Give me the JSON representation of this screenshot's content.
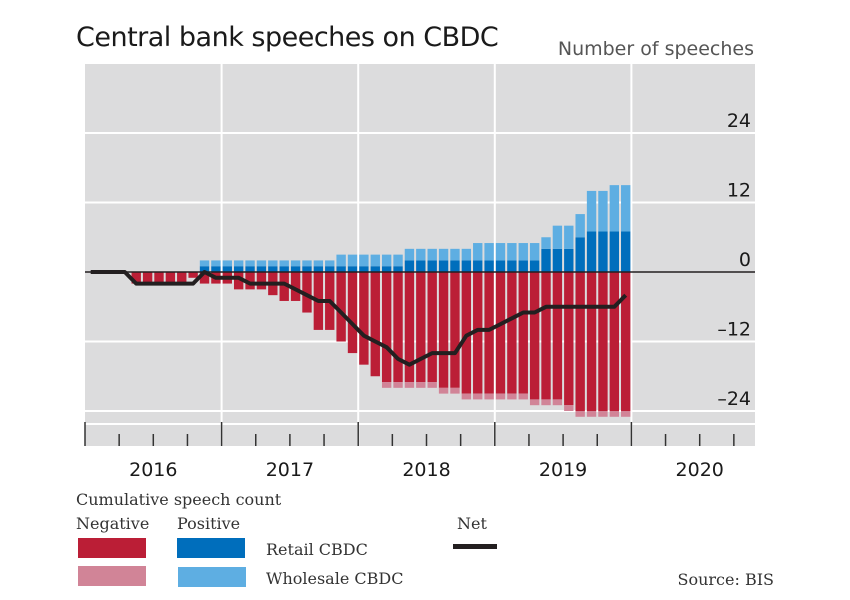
{
  "colors": {
    "plot_bg": "#dcdcdd",
    "gridline": "#ffffff",
    "negative_retail": "#bb1e36",
    "negative_wholesale": "#d18497",
    "positive_retail": "#006ebc",
    "positive_wholesale": "#5eaee2",
    "net": "#231f20",
    "zero_line": "#231f20"
  },
  "chart_data": {
    "type": "bar",
    "title": "Central bank speeches on CBDC",
    "ylabel": "Number of speeches",
    "xlabel": "",
    "ylim": [
      -30,
      36
    ],
    "yticks": [
      24,
      12,
      0,
      -12,
      -24
    ],
    "ytick_labels": [
      "24",
      "12",
      "0",
      "–12",
      "–24"
    ],
    "xtick_labels": [
      "2016",
      "2017",
      "2018",
      "2019",
      "2020"
    ],
    "x_start": "2016-01",
    "frequency": "monthly",
    "grid": true,
    "legend_placement": "bottom",
    "months": 48,
    "series": [
      {
        "name": "Positive Retail CBDC",
        "values": [
          0,
          0,
          0,
          0,
          0,
          0,
          0,
          0,
          0,
          0,
          1,
          1,
          1,
          1,
          1,
          1,
          1,
          1,
          1,
          1,
          1,
          1,
          1,
          1,
          1,
          1,
          1,
          1,
          2,
          2,
          2,
          2,
          2,
          2,
          2,
          2,
          2,
          2,
          2,
          2,
          4,
          4,
          4,
          6,
          7,
          7,
          7,
          7
        ]
      },
      {
        "name": "Positive Wholesale CBDC",
        "values": [
          0,
          0,
          0,
          0,
          0,
          0,
          0,
          0,
          0,
          0,
          1,
          1,
          1,
          1,
          1,
          1,
          1,
          1,
          1,
          1,
          1,
          1,
          2,
          2,
          2,
          2,
          2,
          2,
          2,
          2,
          2,
          2,
          2,
          2,
          3,
          3,
          3,
          3,
          3,
          3,
          2,
          4,
          4,
          4,
          7,
          7,
          8,
          8
        ]
      },
      {
        "name": "Negative Retail CBDC",
        "values": [
          0,
          0,
          0,
          0,
          -2,
          -2,
          -2,
          -2,
          -2,
          -1,
          -2,
          -2,
          -2,
          -3,
          -3,
          -3,
          -4,
          -5,
          -5,
          -7,
          -10,
          -10,
          -12,
          -14,
          -16,
          -18,
          -19,
          -19,
          -19,
          -19,
          -19,
          -20,
          -20,
          -21,
          -21,
          -21,
          -21,
          -21,
          -21,
          -22,
          -22,
          -22,
          -23,
          -24,
          -24,
          -24,
          -24,
          -24
        ]
      },
      {
        "name": "Negative Wholesale CBDC",
        "values": [
          0,
          0,
          0,
          0,
          0,
          0,
          0,
          0,
          0,
          0,
          0,
          0,
          0,
          0,
          0,
          0,
          0,
          0,
          0,
          0,
          0,
          0,
          0,
          0,
          0,
          0,
          -1,
          -1,
          -1,
          -1,
          -1,
          -1,
          -1,
          -1,
          -1,
          -1,
          -1,
          -1,
          -1,
          -1,
          -1,
          -1,
          -1,
          -1,
          -1,
          -1,
          -1,
          -1
        ]
      },
      {
        "name": "Net",
        "type": "line",
        "values": [
          0,
          0,
          0,
          0,
          -2,
          -2,
          -2,
          -2,
          -2,
          -2,
          0,
          -1,
          -1,
          -1,
          -2,
          -2,
          -2,
          -2,
          -3,
          -4,
          -5,
          -5,
          -7,
          -9,
          -11,
          -12,
          -13,
          -15,
          -16,
          -15,
          -14,
          -14,
          -14,
          -11,
          -10,
          -10,
          -9,
          -8,
          -7,
          -7,
          -6,
          -6,
          -6,
          -6,
          -6,
          -6,
          -6,
          -4
        ]
      }
    ]
  },
  "legend": {
    "heading": "Cumulative speech count",
    "negative_label": "Negative",
    "positive_label": "Positive",
    "net_label": "Net",
    "retail_label": "Retail CBDC",
    "wholesale_label": "Wholesale CBDC"
  },
  "source": "Source: BIS"
}
